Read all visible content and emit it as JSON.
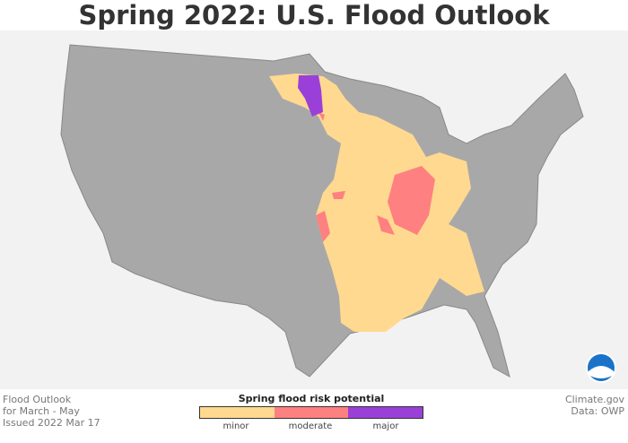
{
  "title": "Spring 2022: U.S. Flood Outlook",
  "info": {
    "line1": "Flood Outlook",
    "line2": "for March - May",
    "line3": "Issued 2022 Mar 17"
  },
  "credit": {
    "line1": "Climate.gov",
    "line2": "Data: OWP"
  },
  "legend": {
    "title": "Spring flood risk potential",
    "categories": [
      {
        "label": "minor",
        "color": "#ffd990"
      },
      {
        "label": "moderate",
        "color": "#ff8080"
      },
      {
        "label": "major",
        "color": "#9a40d8"
      }
    ]
  },
  "logo": "NOAA"
}
